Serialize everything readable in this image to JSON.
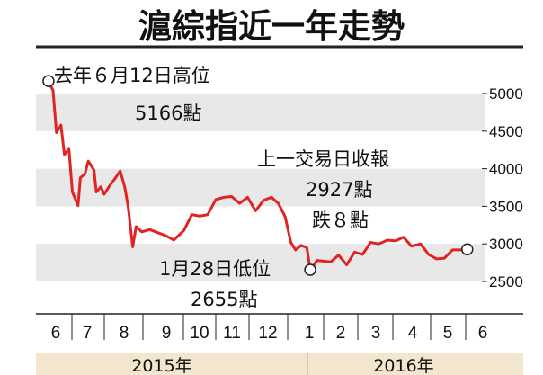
{
  "chart_data": {
    "type": "line",
    "title": "滬綜指近一年走勢",
    "y_ticks": [
      "5000",
      "4500",
      "4000",
      "3500",
      "3000",
      "2500"
    ],
    "ylim": [
      2400,
      5300
    ],
    "month_labels": [
      "6",
      "7",
      "8",
      "9",
      "10",
      "11",
      "12",
      "1",
      "2",
      "3",
      "4",
      "5",
      "6"
    ],
    "year_labels": [
      "2015年",
      "2016年"
    ],
    "grid": "horizontal bands",
    "line_color": "#e02424",
    "band_color": "#e8e8e8",
    "year_bar_color": "#f3e6cf",
    "series": [
      {
        "x": [
          "2015-06-12",
          "2015-06-16",
          "2015-06-19",
          "2015-06-23",
          "2015-06-26",
          "2015-06-30",
          "2015-07-03",
          "2015-07-08",
          "2015-07-10",
          "2015-07-14",
          "2015-07-17",
          "2015-07-22",
          "2015-07-24",
          "2015-07-28",
          "2015-07-31",
          "2015-08-05",
          "2015-08-10",
          "2015-08-14",
          "2015-08-18",
          "2015-08-21",
          "2015-08-25",
          "2015-08-28",
          "2015-09-02",
          "2015-09-09",
          "2015-09-16",
          "2015-09-23",
          "2015-09-30",
          "2015-10-09",
          "2015-10-16",
          "2015-10-23",
          "2015-10-30",
          "2015-11-06",
          "2015-11-13",
          "2015-11-20",
          "2015-11-27",
          "2015-12-04",
          "2015-12-11",
          "2015-12-18",
          "2015-12-25",
          "2015-12-31",
          "2016-01-06",
          "2016-01-11",
          "2016-01-15",
          "2016-01-20",
          "2016-01-25",
          "2016-01-28",
          "2016-02-03",
          "2016-02-15",
          "2016-02-22",
          "2016-02-29",
          "2016-03-07",
          "2016-03-14",
          "2016-03-21",
          "2016-03-28",
          "2016-04-05",
          "2016-04-12",
          "2016-04-19",
          "2016-04-26",
          "2016-05-04",
          "2016-05-11",
          "2016-05-18",
          "2016-05-25",
          "2016-06-01",
          "2016-06-08",
          "2016-06-14"
        ],
        "y": [
          5166,
          5040,
          4480,
          4580,
          4190,
          4260,
          3690,
          3510,
          3880,
          3930,
          4100,
          3980,
          3690,
          3760,
          3660,
          3780,
          3880,
          3970,
          3760,
          3500,
          2960,
          3230,
          3160,
          3190,
          3150,
          3110,
          3050,
          3180,
          3390,
          3370,
          3390,
          3590,
          3620,
          3630,
          3540,
          3620,
          3440,
          3580,
          3620,
          3540,
          3360,
          3020,
          2920,
          2980,
          2950,
          2655,
          2780,
          2760,
          2850,
          2720,
          2890,
          2860,
          3020,
          3000,
          3050,
          3040,
          3090,
          2970,
          3000,
          2860,
          2800,
          2810,
          2920,
          2920,
          2927
        ]
      }
    ],
    "annotations": [
      {
        "label": "去年６月12日高位",
        "value": "5166點"
      },
      {
        "label": "1月28日低位",
        "value": "2655點"
      },
      {
        "label": "上一交易日收報",
        "value": "2927點",
        "change": "跌８點"
      }
    ]
  }
}
